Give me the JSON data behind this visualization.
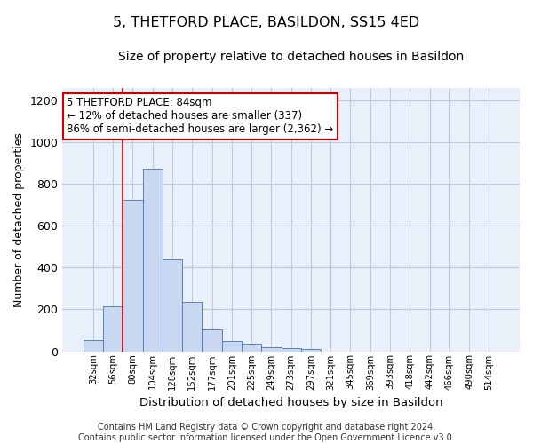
{
  "title": "5, THETFORD PLACE, BASILDON, SS15 4ED",
  "subtitle": "Size of property relative to detached houses in Basildon",
  "xlabel": "Distribution of detached houses by size in Basildon",
  "ylabel": "Number of detached properties",
  "categories": [
    "32sqm",
    "56sqm",
    "80sqm",
    "104sqm",
    "128sqm",
    "152sqm",
    "177sqm",
    "201sqm",
    "225sqm",
    "249sqm",
    "273sqm",
    "297sqm",
    "321sqm",
    "345sqm",
    "369sqm",
    "393sqm",
    "418sqm",
    "442sqm",
    "466sqm",
    "490sqm",
    "514sqm"
  ],
  "bar_values": [
    55,
    215,
    725,
    875,
    440,
    235,
    105,
    48,
    37,
    20,
    15,
    10,
    0,
    0,
    0,
    0,
    0,
    0,
    0,
    0,
    0
  ],
  "bar_color": "#c8d8f0",
  "bar_edge_color": "#5580b8",
  "vline_x": 1.5,
  "vline_color": "#cc0000",
  "annotation_text": "5 THETFORD PLACE: 84sqm\n← 12% of detached houses are smaller (337)\n86% of semi-detached houses are larger (2,362) →",
  "annotation_box_color": "#ffffff",
  "annotation_box_edge_color": "#cc0000",
  "ylim": [
    0,
    1260
  ],
  "yticks": [
    0,
    200,
    400,
    600,
    800,
    1000,
    1200
  ],
  "grid_color": "#c0c8e0",
  "bg_color": "#eaf0fa",
  "footer": "Contains HM Land Registry data © Crown copyright and database right 2024.\nContains public sector information licensed under the Open Government Licence v3.0.",
  "title_fontsize": 11.5,
  "subtitle_fontsize": 10,
  "xlabel_fontsize": 9.5,
  "ylabel_fontsize": 9,
  "annotation_fontsize": 8.5,
  "footer_fontsize": 7
}
